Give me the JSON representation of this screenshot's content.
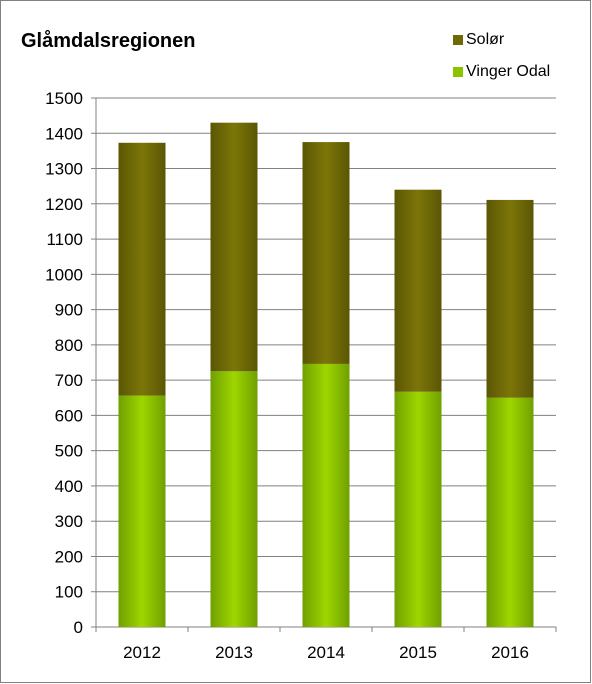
{
  "chart_data": {
    "type": "bar",
    "stacked": true,
    "title": "Glåmdalsregionen",
    "categories": [
      "2012",
      "2013",
      "2014",
      "2015",
      "2016"
    ],
    "series": [
      {
        "name": "Vinger Odal",
        "values": [
          656,
          725,
          746,
          667,
          650
        ],
        "color": "#8dc400"
      },
      {
        "name": "Solør",
        "values": [
          717,
          705,
          629,
          573,
          561
        ],
        "color": "#6f6a05"
      }
    ],
    "ylim": [
      0,
      1500
    ],
    "yticks": [
      "0",
      "100",
      "200",
      "300",
      "400",
      "500",
      "600",
      "700",
      "800",
      "900",
      "1000",
      "1100",
      "1200",
      "1300",
      "1400",
      "1500"
    ],
    "grid": true,
    "legend_position": "top-right",
    "xlabel": "",
    "ylabel": ""
  }
}
